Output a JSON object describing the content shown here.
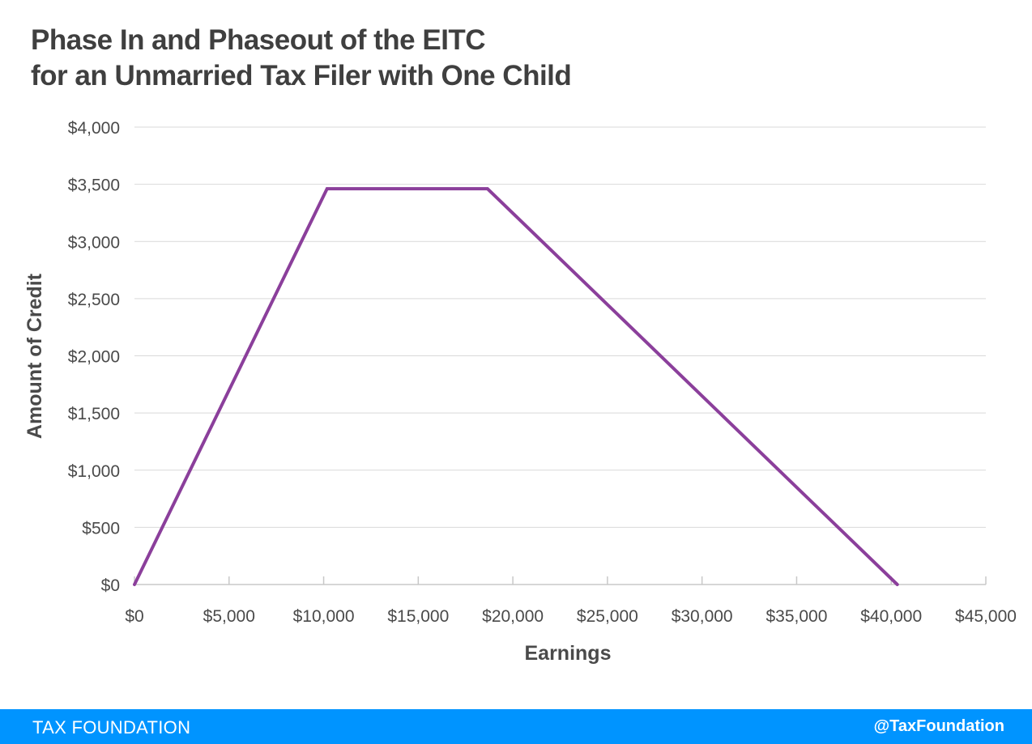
{
  "chart_data": {
    "type": "line",
    "title_lines": [
      "Phase In and Phaseout of the EITC",
      "for an Unmarried Tax Filer with One Child"
    ],
    "xlabel": "Earnings",
    "ylabel": "Amount of Credit",
    "xlim": [
      0,
      45000
    ],
    "ylim": [
      0,
      4000
    ],
    "x_ticks": [
      0,
      5000,
      10000,
      15000,
      20000,
      25000,
      30000,
      35000,
      40000,
      45000
    ],
    "x_tick_labels": [
      "$0",
      "$5,000",
      "$10,000",
      "$15,000",
      "$20,000",
      "$25,000",
      "$30,000",
      "$35,000",
      "$40,000",
      "$45,000"
    ],
    "y_ticks": [
      0,
      500,
      1000,
      1500,
      2000,
      2500,
      3000,
      3500,
      4000
    ],
    "y_tick_labels": [
      "$0",
      "$500",
      "$1,000",
      "$1,500",
      "$2,000",
      "$2,500",
      "$3,000",
      "$3,500",
      "$4,000"
    ],
    "grid": "horizontal",
    "legend": "none",
    "series": [
      {
        "x": [
          0,
          10180,
          18660,
          40320
        ],
        "y": [
          0,
          3461,
          3461,
          0
        ],
        "color": "#8b3f9b"
      }
    ]
  },
  "colors": {
    "line": "#8b3f9b",
    "grid": "#d9d9d9",
    "axis": "#c8c8c8",
    "footer_bg": "#0094ff",
    "footer_text": "#ffffff"
  },
  "footer": {
    "brand": "TAX FOUNDATION",
    "handle": "@TaxFoundation"
  }
}
